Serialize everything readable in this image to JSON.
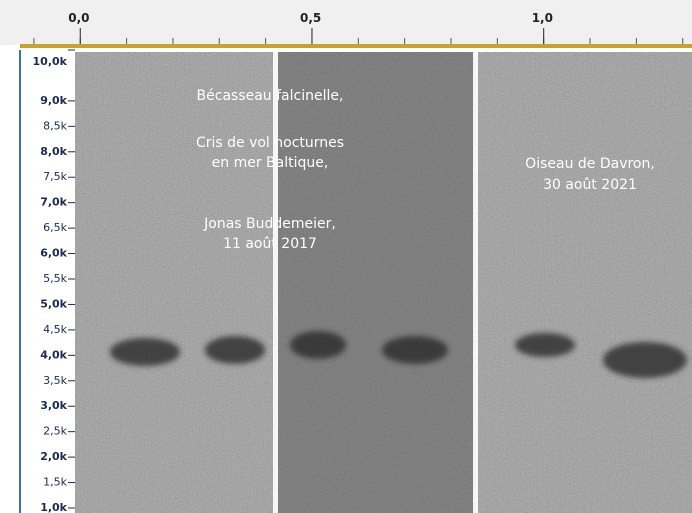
{
  "chart_data": {
    "type": "spectrogram",
    "xlim": [
      -0.13,
      1.32
    ],
    "xticks": [
      {
        "value": 0,
        "label": "0,0"
      },
      {
        "value": 0.5,
        "label": "0,5"
      },
      {
        "value": 1,
        "label": "1,0"
      }
    ],
    "ylim": [
      1000,
      10000
    ],
    "yticks": [
      {
        "value": 10000,
        "label": "10,0k"
      },
      {
        "value": 9000,
        "label": "9,0k"
      },
      {
        "value": 8500,
        "label": "8,5k"
      },
      {
        "value": 8000,
        "label": "8,0k"
      },
      {
        "value": 7500,
        "label": "7,5k"
      },
      {
        "value": 7000,
        "label": "7,0k"
      },
      {
        "value": 6500,
        "label": "6,5k"
      },
      {
        "value": 6000,
        "label": "6,0k"
      },
      {
        "value": 5500,
        "label": "5,5k"
      },
      {
        "value": 5000,
        "label": "5,0k"
      },
      {
        "value": 4500,
        "label": "4,5k"
      },
      {
        "value": 4000,
        "label": "4,0k"
      },
      {
        "value": 3500,
        "label": "3,5k"
      },
      {
        "value": 3000,
        "label": "3,0k"
      },
      {
        "value": 2500,
        "label": "2,5k"
      },
      {
        "value": 2000,
        "label": "2,0k"
      },
      {
        "value": 1500,
        "label": "1,5k"
      },
      {
        "value": 1000,
        "label": "1,0k"
      }
    ],
    "annotations": [
      {
        "lines": [
          "Bécasseau falcinelle,",
          "Cris de vol nocturnes",
          "en mer Baltique,",
          "Jonas Buddemeier,",
          "11 août 2017"
        ]
      },
      {
        "lines": [
          "Oiseau de Davron,",
          "30 août 2021"
        ]
      }
    ]
  }
}
